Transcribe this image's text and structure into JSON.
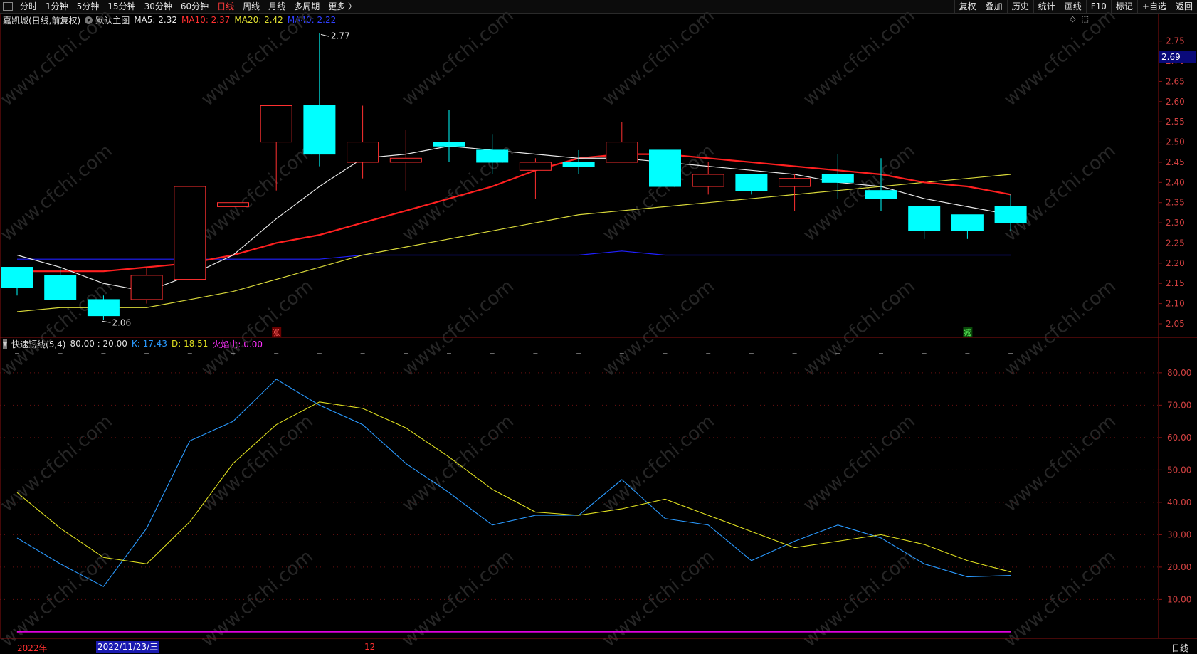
{
  "toolbar": {
    "items": [
      {
        "label": "分时",
        "active": false
      },
      {
        "label": "1分钟",
        "active": false
      },
      {
        "label": "5分钟",
        "active": false
      },
      {
        "label": "15分钟",
        "active": false
      },
      {
        "label": "30分钟",
        "active": false
      },
      {
        "label": "60分钟",
        "active": false
      },
      {
        "label": "日线",
        "active": true
      },
      {
        "label": "周线",
        "active": false
      },
      {
        "label": "月线",
        "active": false
      },
      {
        "label": "多周期",
        "active": false
      },
      {
        "label": "更多 〉",
        "active": false
      }
    ],
    "right_buttons": [
      "复权",
      "叠加",
      "历史",
      "统计",
      "画线",
      "F10",
      "标记",
      "+自选",
      "返回"
    ]
  },
  "main_legend": {
    "stock_name": "嘉凯城(日线,前复权)",
    "chart_name": "默认主图",
    "ma5": "MA5: 2.32",
    "ma10": "MA10: 2.37",
    "ma20": "MA20: 2.42",
    "ma40": "MA40: 2.22"
  },
  "sub_legend": {
    "indicator": "快速短线(5,4)",
    "levels": "80.00 : 20.00",
    "k": "K: 17.43",
    "d": "D: 18.51",
    "volcano": "火焰山: 0.00"
  },
  "current_price": "2.69",
  "high_label": "2.77",
  "low_label": "2.06",
  "marker_up": "涨",
  "marker_down": "减",
  "x_axis": {
    "year_label": "2022年",
    "cursor_date": "2022/11/23/三",
    "month_label": "12",
    "period_label": "日线"
  },
  "colors": {
    "up": "#ff3030",
    "down": "#00ffff",
    "ma5": "#e8e8e8",
    "ma10": "#ff2020",
    "ma20": "#d9d93a",
    "ma40": "#2020ff",
    "k": "#2a9aff",
    "d": "#e0e020",
    "volcano": "#ff00ff"
  },
  "chart_data": [
    {
      "type": "candlestick",
      "title": "嘉凯城(日线,前复权)",
      "y_ticks": [
        "2.75",
        "2.70",
        "2.65",
        "2.60",
        "2.55",
        "2.50",
        "2.45",
        "2.40",
        "2.35",
        "2.30",
        "2.25",
        "2.20",
        "2.15",
        "2.10",
        "2.05"
      ],
      "ylim": [
        2.02,
        2.79
      ],
      "candles": [
        {
          "o": 2.19,
          "h": 2.19,
          "l": 2.12,
          "c": 2.14
        },
        {
          "o": 2.17,
          "h": 2.19,
          "l": 2.11,
          "c": 2.11
        },
        {
          "o": 2.11,
          "h": 2.12,
          "l": 2.06,
          "c": 2.07
        },
        {
          "o": 2.11,
          "h": 2.19,
          "l": 2.1,
          "c": 2.17
        },
        {
          "o": 2.16,
          "h": 2.39,
          "l": 2.16,
          "c": 2.39
        },
        {
          "o": 2.34,
          "h": 2.46,
          "l": 2.29,
          "c": 2.35
        },
        {
          "o": 2.5,
          "h": 2.59,
          "l": 2.38,
          "c": 2.59
        },
        {
          "o": 2.59,
          "h": 2.77,
          "l": 2.44,
          "c": 2.47
        },
        {
          "o": 2.45,
          "h": 2.59,
          "l": 2.41,
          "c": 2.5
        },
        {
          "o": 2.45,
          "h": 2.53,
          "l": 2.38,
          "c": 2.46
        },
        {
          "o": 2.5,
          "h": 2.58,
          "l": 2.45,
          "c": 2.49
        },
        {
          "o": 2.48,
          "h": 2.52,
          "l": 2.42,
          "c": 2.45
        },
        {
          "o": 2.43,
          "h": 2.46,
          "l": 2.36,
          "c": 2.45
        },
        {
          "o": 2.45,
          "h": 2.48,
          "l": 2.42,
          "c": 2.44
        },
        {
          "o": 2.45,
          "h": 2.55,
          "l": 2.45,
          "c": 2.5
        },
        {
          "o": 2.48,
          "h": 2.5,
          "l": 2.38,
          "c": 2.39
        },
        {
          "o": 2.39,
          "h": 2.45,
          "l": 2.37,
          "c": 2.42
        },
        {
          "o": 2.42,
          "h": 2.42,
          "l": 2.37,
          "c": 2.38
        },
        {
          "o": 2.39,
          "h": 2.42,
          "l": 2.33,
          "c": 2.41
        },
        {
          "o": 2.42,
          "h": 2.47,
          "l": 2.36,
          "c": 2.4
        },
        {
          "o": 2.38,
          "h": 2.46,
          "l": 2.33,
          "c": 2.36
        },
        {
          "o": 2.34,
          "h": 2.34,
          "l": 2.26,
          "c": 2.28
        },
        {
          "o": 2.32,
          "h": 2.32,
          "l": 2.26,
          "c": 2.28
        },
        {
          "o": 2.34,
          "h": 2.37,
          "l": 2.28,
          "c": 2.3
        }
      ],
      "series": [
        {
          "name": "MA5",
          "values": [
            2.22,
            2.19,
            2.15,
            2.13,
            2.17,
            2.22,
            2.31,
            2.39,
            2.46,
            2.47,
            2.49,
            2.48,
            2.47,
            2.46,
            2.46,
            2.45,
            2.44,
            2.43,
            2.42,
            2.4,
            2.39,
            2.36,
            2.34,
            2.32
          ]
        },
        {
          "name": "MA10",
          "values": [
            2.18,
            2.18,
            2.18,
            2.19,
            2.2,
            2.22,
            2.25,
            2.27,
            2.3,
            2.33,
            2.36,
            2.39,
            2.43,
            2.46,
            2.47,
            2.47,
            2.46,
            2.45,
            2.44,
            2.43,
            2.42,
            2.4,
            2.39,
            2.37
          ]
        },
        {
          "name": "MA20",
          "values": [
            2.08,
            2.09,
            2.09,
            2.09,
            2.11,
            2.13,
            2.16,
            2.19,
            2.22,
            2.24,
            2.26,
            2.28,
            2.3,
            2.32,
            2.33,
            2.34,
            2.35,
            2.36,
            2.37,
            2.38,
            2.39,
            2.4,
            2.41,
            2.42
          ]
        },
        {
          "name": "MA40",
          "values": [
            2.21,
            2.21,
            2.21,
            2.21,
            2.21,
            2.21,
            2.21,
            2.21,
            2.22,
            2.22,
            2.22,
            2.22,
            2.22,
            2.22,
            2.23,
            2.22,
            2.22,
            2.22,
            2.22,
            2.22,
            2.22,
            2.22,
            2.22,
            2.22
          ]
        }
      ]
    },
    {
      "type": "line",
      "title": "快速短线(5,4)",
      "y_ticks": [
        "80.00",
        "70.00",
        "60.00",
        "50.00",
        "40.00",
        "30.00",
        "20.00",
        "10.00"
      ],
      "ylim": [
        -2,
        87
      ],
      "series": [
        {
          "name": "K",
          "values": [
            29,
            21,
            14,
            32,
            59,
            65,
            78,
            70,
            64,
            52,
            43,
            33,
            36,
            36,
            47,
            35,
            33,
            22,
            28,
            33,
            29,
            21,
            17,
            17.43
          ]
        },
        {
          "name": "D",
          "values": [
            43,
            32,
            23,
            21,
            34,
            52,
            64,
            71,
            69,
            63,
            54,
            44,
            37,
            36,
            38,
            41,
            36,
            31,
            26,
            28,
            30,
            27,
            22,
            18.51
          ]
        },
        {
          "name": "火焰山",
          "values": [
            0,
            0,
            0,
            0,
            0,
            0,
            0,
            0,
            0,
            0,
            0,
            0,
            0,
            0,
            0,
            0,
            0,
            0,
            0,
            0,
            0,
            0,
            0,
            0
          ]
        }
      ]
    }
  ]
}
